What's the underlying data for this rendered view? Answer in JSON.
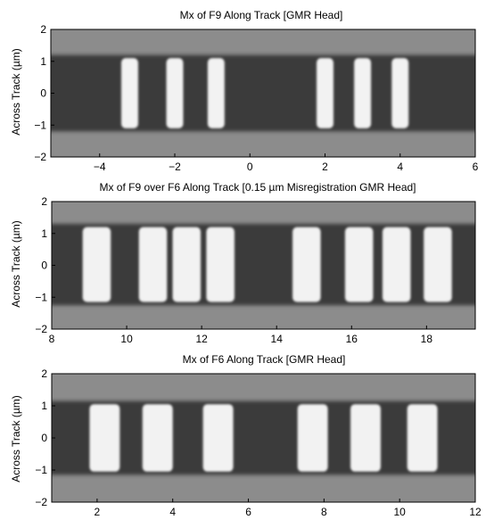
{
  "chart_data": [
    {
      "type": "heatmap",
      "title": "Mx of F9 Along Track [GMR Head]",
      "xlabel": "",
      "ylabel": "Across Track (µm)",
      "xlim": [
        -5.3,
        6
      ],
      "ylim": [
        -2,
        2
      ],
      "xticks": [
        -4,
        -2,
        0,
        2,
        4,
        6
      ],
      "yticks": [
        -2,
        -1,
        0,
        1,
        2
      ],
      "bright_bit_centers": [
        -3.2,
        -2.0,
        -0.9,
        2.0,
        3.0,
        4.0
      ],
      "bit_width": 0.45,
      "band_y": [
        -1.2,
        1.2
      ],
      "grid": false
    },
    {
      "type": "heatmap",
      "title": "Mx of F9 over F6 Along Track [0.15 µm Misregistration GMR Head]",
      "xlabel": "",
      "ylabel": "Across Track (µm)",
      "xlim": [
        8,
        19.3
      ],
      "ylim": [
        -2,
        2
      ],
      "xticks": [
        8,
        10,
        12,
        14,
        16,
        18
      ],
      "yticks": [
        -2,
        -1,
        0,
        1,
        2
      ],
      "bright_bit_centers": [
        9.2,
        10.7,
        11.6,
        12.5,
        14.8,
        16.2,
        17.2,
        18.3
      ],
      "bit_width": 0.75,
      "band_y": [
        -1.25,
        1.3
      ],
      "grid": false
    },
    {
      "type": "heatmap",
      "title": "Mx of F6 Along Track [GMR Head]",
      "xlabel": "",
      "ylabel": "Across Track (µm)",
      "xlim": [
        0.8,
        12
      ],
      "ylim": [
        -2,
        2
      ],
      "xticks": [
        2,
        4,
        6,
        8,
        10,
        12
      ],
      "yticks": [
        -2,
        -1,
        0,
        1,
        2
      ],
      "bright_bit_centers": [
        2.2,
        3.6,
        5.2,
        7.7,
        9.1,
        10.6
      ],
      "bit_width": 0.8,
      "band_y": [
        -1.15,
        1.15
      ],
      "grid": false
    }
  ],
  "colors": {
    "background_field": "#8c8c8c",
    "dark_domain": "#3a3a3a",
    "bright_domain": "#f2f2f2"
  }
}
